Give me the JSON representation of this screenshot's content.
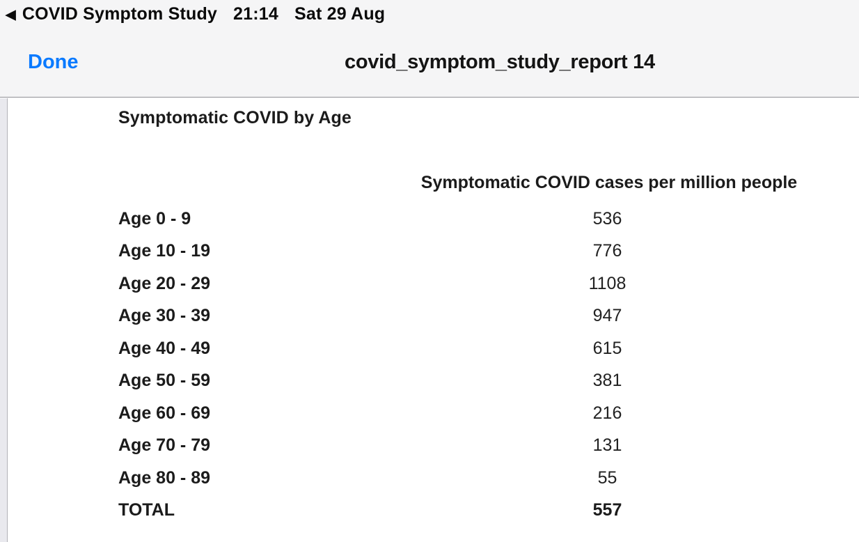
{
  "status_bar": {
    "back_icon": "◀",
    "app_name": "COVID Symptom Study",
    "time": "21:14",
    "date": "Sat 29 Aug"
  },
  "nav_bar": {
    "done_label": "Done",
    "title": "covid_symptom_study_report 14"
  },
  "document": {
    "title": "Symptomatic COVID by Age",
    "table": {
      "value_column_header": "Symptomatic COVID cases per million people",
      "rows": [
        {
          "label": "Age 0 - 9",
          "value": "536"
        },
        {
          "label": "Age 10 - 19",
          "value": "776"
        },
        {
          "label": "Age 20 - 29",
          "value": "1108"
        },
        {
          "label": "Age 30 - 39",
          "value": "947"
        },
        {
          "label": "Age 40 - 49",
          "value": "615"
        },
        {
          "label": "Age 50 - 59",
          "value": "381"
        },
        {
          "label": "Age 60 - 69",
          "value": "216"
        },
        {
          "label": "Age 70 - 79",
          "value": "131"
        },
        {
          "label": "Age 80 - 89",
          "value": "55"
        },
        {
          "label": "TOTAL",
          "value": "557"
        }
      ]
    }
  },
  "colors": {
    "accent_blue": "#0a7aff",
    "bar_background": "#f5f5f6",
    "separator": "#909095",
    "gutter": "#e9e9ee"
  }
}
